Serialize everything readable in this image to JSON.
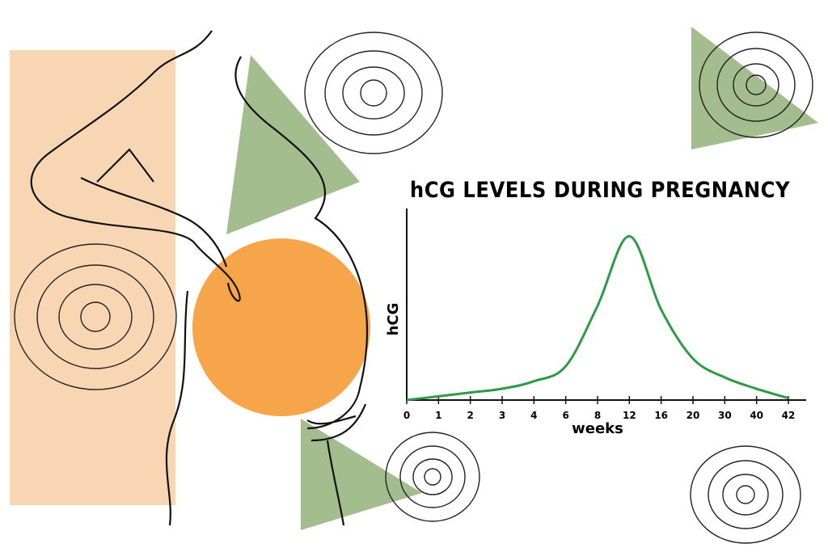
{
  "chart_data": {
    "type": "line",
    "title": "hCG LEVELS DURING PREGNANCY",
    "x_label": "weeks",
    "y_label": "hCG",
    "categories": [
      "0",
      "1",
      "2",
      "3",
      "4",
      "6",
      "8",
      "12",
      "16",
      "20",
      "30",
      "40",
      "42"
    ],
    "series": [
      {
        "name": "hCG",
        "color": "#2e9a48",
        "values": [
          0,
          2,
          4,
          6,
          10,
          18,
          50,
          87,
          48,
          22,
          12,
          6,
          1
        ]
      }
    ],
    "ylim": [
      0,
      100
    ]
  }
}
